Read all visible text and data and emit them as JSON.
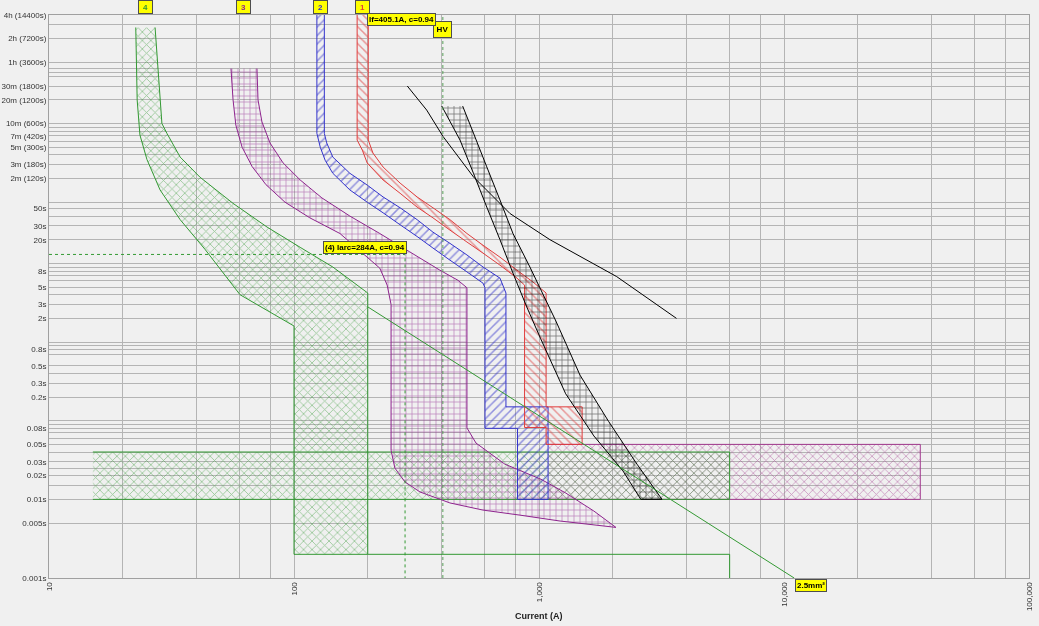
{
  "chart_data": {
    "type": "area",
    "xlabel": "Current (A)",
    "log": "xy",
    "xlim": [
      10,
      100000
    ],
    "ylim": [
      0.001,
      14400
    ],
    "xticks": [
      10,
      {
        "value": 20,
        "label": null
      },
      {
        "value": 40,
        "label": null
      },
      {
        "value": 60,
        "label": null
      },
      {
        "value": 80,
        "label": null
      },
      100,
      {
        "value": 200,
        "label": null
      },
      {
        "value": 400,
        "label": null
      },
      {
        "value": 600,
        "label": null
      },
      {
        "value": 800,
        "label": null
      },
      {
        "value": 1000,
        "label": "1,000"
      },
      {
        "value": 2000,
        "label": null
      },
      {
        "value": 4000,
        "label": null
      },
      {
        "value": 6000,
        "label": null
      },
      {
        "value": 8000,
        "label": null
      },
      {
        "value": 10000,
        "label": "10,000"
      },
      {
        "value": 20000,
        "label": null
      },
      {
        "value": 40000,
        "label": null
      },
      {
        "value": 60000,
        "label": null
      },
      {
        "value": 80000,
        "label": null
      },
      {
        "value": 100000,
        "label": "100,000"
      }
    ],
    "yticks": [
      {
        "value": 14400,
        "label": "4h (14400s)"
      },
      {
        "value": 10800,
        "label": null
      },
      {
        "value": 7200,
        "label": "2h (7200s)"
      },
      {
        "value": 3600,
        "label": "1h (3600s)"
      },
      {
        "value": 3000,
        "label": null
      },
      {
        "value": 2700,
        "label": null
      },
      {
        "value": 2400,
        "label": null
      },
      {
        "value": 1800,
        "label": "30m (1800s)"
      },
      {
        "value": 1200,
        "label": "20m (1200s)"
      },
      {
        "value": 600,
        "label": "10m (600s)"
      },
      {
        "value": 540,
        "label": null
      },
      {
        "value": 480,
        "label": null
      },
      {
        "value": 420,
        "label": "7m (420s)"
      },
      {
        "value": 360,
        "label": null
      },
      {
        "value": 300,
        "label": "5m (300s)"
      },
      {
        "value": 240,
        "label": null
      },
      {
        "value": 180,
        "label": "3m (180s)"
      },
      {
        "value": 120,
        "label": "2m (120s)"
      },
      {
        "value": 60,
        "label": null
      },
      {
        "value": 50,
        "label": "50s"
      },
      {
        "value": 40,
        "label": null
      },
      {
        "value": 30,
        "label": "30s"
      },
      {
        "value": 20,
        "label": "20s"
      },
      {
        "value": 10,
        "label": null
      },
      {
        "value": 9,
        "label": null
      },
      {
        "value": 8,
        "label": "8s"
      },
      {
        "value": 7,
        "label": null
      },
      {
        "value": 6,
        "label": null
      },
      {
        "value": 5,
        "label": "5s"
      },
      {
        "value": 4,
        "label": null
      },
      {
        "value": 3,
        "label": "3s"
      },
      {
        "value": 2,
        "label": "2s"
      },
      {
        "value": 1,
        "label": null
      },
      {
        "value": 0.9,
        "label": null
      },
      {
        "value": 0.8,
        "label": "0.8s"
      },
      {
        "value": 0.7,
        "label": null
      },
      {
        "value": 0.5,
        "label": "0.5s"
      },
      {
        "value": 0.4,
        "label": null
      },
      {
        "value": 0.3,
        "label": "0.3s"
      },
      {
        "value": 0.2,
        "label": "0.2s"
      },
      {
        "value": 0.1,
        "label": null
      },
      {
        "value": 0.09,
        "label": null
      },
      {
        "value": 0.08,
        "label": "0.08s"
      },
      {
        "value": 0.07,
        "label": null
      },
      {
        "value": 0.06,
        "label": null
      },
      {
        "value": 0.05,
        "label": "0.05s"
      },
      {
        "value": 0.04,
        "label": null
      },
      {
        "value": 0.03,
        "label": "0.03s"
      },
      {
        "value": 0.025,
        "label": null
      },
      {
        "value": 0.02,
        "label": "0.02s"
      },
      {
        "value": 0.015,
        "label": null
      },
      {
        "value": 0.01,
        "label": "0.01s"
      },
      {
        "value": 0.005,
        "label": "0.005s"
      },
      {
        "value": 0.001,
        "label": "0.001s"
      }
    ],
    "grid": true,
    "series": [
      {
        "color": "#a33a8f",
        "x": [
          1089,
          36000,
          36000,
          1089
        ],
        "values": [
          0.01,
          0.01,
          0.05,
          0.05
        ]
      },
      {
        "name": "4",
        "color": "#339933",
        "x": [
          22.6,
          22.9,
          23.5,
          25.1,
          28.4,
          34.3,
          43.4,
          60.2,
          100,
          100,
          200,
          200,
          144,
          106,
          77.6,
          56.4,
          41.3,
          34.3,
          30.3,
          28.9,
          27.1,
          null,
          15.1,
          6000,
          6000,
          15.1
        ],
        "values": [
          10000,
          1200,
          430,
          210,
          86,
          36,
          15,
          4,
          1.6,
          0.002,
          0.002,
          4.2,
          9,
          16,
          29,
          58,
          125,
          225,
          450,
          600,
          10000,
          null,
          0.01,
          0.01,
          0.04,
          0.04
        ]
      },
      {
        "type": "line",
        "color": "#339933",
        "x": [
          200,
          6000,
          6000
        ],
        "values": [
          0.002,
          0.002,
          0.001
        ]
      },
      {
        "name": "3",
        "color": "#8e248e",
        "x": [
          55.3,
          56.4,
          57.9,
          61.4,
          67.5,
          76.9,
          91.9,
          116,
          154,
          224,
          240,
          249,
          249,
          258,
          284,
          327,
          433,
          591,
          836,
          1219,
          2060,
          1675,
          1288,
          1019,
          726,
          553,
          508,
          508,
          467,
          394,
          297,
          224,
          169,
          130,
          106,
          90.2,
          79.8,
          74,
          71.3,
          70.6
        ],
        "values": [
          3000,
          1200,
          570,
          300,
          170,
          100,
          60,
          38,
          24,
          8.7,
          5.3,
          3,
          0.042,
          0.025,
          0.0166,
          0.0124,
          0.009,
          0.0073,
          0.0063,
          0.0053,
          0.0044,
          0.0071,
          0.012,
          0.018,
          0.028,
          0.052,
          0.081,
          4.9,
          6.1,
          8.2,
          14,
          24,
          40,
          68,
          115,
          190,
          340,
          630,
          1200,
          3000
        ]
      },
      {
        "name": "2",
        "color": "#3333cc",
        "x": [
          124,
          124,
          128,
          134,
          144,
          169,
          199,
          231,
          271,
          318,
          369,
          433,
          508,
          591,
          602,
          602,
          817,
          817,
          1089,
          1089,
          733,
          733,
          693,
          591,
          508,
          433,
          369,
          318,
          271,
          231,
          199,
          169,
          144,
          136,
          133,
          133
        ],
        "values": [
          14400,
          450,
          300,
          205,
          140,
          86,
          60,
          44,
          31,
          22,
          15.7,
          11,
          7.8,
          5.6,
          4.9,
          0.08,
          0.08,
          0.01,
          0.01,
          0.15,
          0.15,
          4.2,
          6.5,
          9,
          12.8,
          18,
          25,
          36,
          51,
          70,
          99,
          140,
          225,
          340,
          450,
          14400
        ]
      },
      {
        "name": "1",
        "color": "#e03c3c",
        "x": [
          181,
          181,
          190,
          199,
          231,
          271,
          318,
          369,
          433,
          508,
          591,
          693,
          813,
          873,
          873,
          1069,
          1069,
          1500,
          1500,
          1069,
          1069,
          945,
          813,
          693,
          591,
          508,
          433,
          369,
          318,
          271,
          231,
          210,
          201,
          201
        ],
        "values": [
          14400,
          370,
          276,
          189,
          115,
          78,
          52,
          38,
          26.5,
          18.7,
          13.5,
          9.5,
          6.5,
          5.3,
          0.082,
          0.082,
          0.05,
          0.05,
          0.15,
          0.15,
          4.2,
          5.8,
          8.2,
          12,
          17,
          24,
          36,
          51,
          70,
          105,
          168,
          253,
          370,
          14400
        ]
      },
      {
        "color": "#000000",
        "x": [
          401,
          476,
          540,
          612,
          693,
          783,
          891,
          1016,
          1285,
          1675,
          2201,
          2603,
          3177,
          2512,
          1923,
          1470,
          1172,
          918,
          783,
          693,
          612,
          540,
          488
        ],
        "values": [
          1000,
          370,
          140,
          52,
          20,
          7.5,
          2.8,
          1.1,
          0.22,
          0.064,
          0.023,
          0.01,
          0.01,
          0.028,
          0.098,
          0.38,
          1.85,
          9,
          24,
          64,
          169,
          454,
          1000
        ]
      },
      {
        "type": "line",
        "color": "#000000",
        "x": [
          290,
          348,
          406,
          540,
          762,
          1109,
          2075,
          3640
        ],
        "values": [
          1800,
          890,
          410,
          126,
          43,
          20,
          6.8,
          2
        ]
      },
      {
        "name": "2.5mm²",
        "type": "line",
        "color": "#339933",
        "x": [
          200,
          11000
        ],
        "values": [
          2.8,
          0.001
        ]
      },
      {
        "type": "line",
        "color": "#339933",
        "line_style": "dotted",
        "x": [
          10,
          284,
          284
        ],
        "values": [
          13,
          13,
          0.001
        ]
      }
    ],
    "ref_lines": [
      {
        "axis": "x",
        "value": 405.1,
        "label": "HV",
        "color": "#58a058",
        "line_style": "dotted"
      }
    ],
    "annotations": [
      {
        "text": "If=405.1A, c=0.94",
        "x": 405.1,
        "y": 14400
      },
      {
        "text": "(4) Iarc=284A, c=0.94",
        "x": 284,
        "y": 13
      }
    ]
  }
}
